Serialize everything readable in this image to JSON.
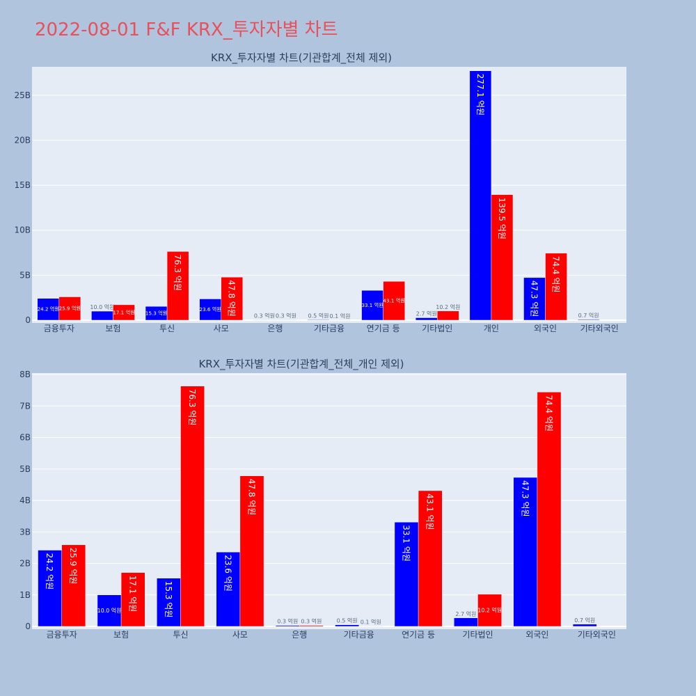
{
  "title": "2022-08-01 F&F KRX_투자자별 차트",
  "colors": {
    "buy": "#0000ff",
    "sell": "#ff0000",
    "plot_bg": "#e5ecf6",
    "page_bg": "#b0c4de",
    "title": "#e8505b"
  },
  "chart_data": [
    {
      "type": "bar",
      "title": "KRX_투자자별 차트(기관합계_전체 제외)",
      "categories": [
        "금융투자",
        "보험",
        "투신",
        "사모",
        "은행",
        "기타금융",
        "연기금 등",
        "기타법인",
        "개인",
        "외국인",
        "기타외국인"
      ],
      "ylim": [
        0,
        28
      ],
      "yticks": [
        0,
        5,
        10,
        15,
        20,
        25
      ],
      "ytick_labels": [
        "0",
        "5B",
        "10B",
        "15B",
        "20B",
        "25B"
      ],
      "grid": true,
      "series": [
        {
          "values": [
            2.42,
            1.0,
            1.53,
            2.36,
            0.03,
            0.05,
            3.31,
            0.27,
            27.71,
            4.73,
            0.07
          ],
          "labels": [
            "24.2 억원",
            "10.0 억원",
            "15.3 억원",
            "23.6 억원",
            "0.3 억원",
            "0.5 억원",
            "33.1 억원",
            "2.7 억원",
            "277.1 억원",
            "47.3 억원",
            "0.7 억원"
          ]
        },
        {
          "values": [
            2.59,
            1.71,
            7.63,
            4.78,
            0.03,
            0.01,
            4.31,
            1.02,
            13.95,
            7.44,
            0
          ],
          "labels": [
            "25.9 억원",
            "17.1 억원",
            "76.3 억원",
            "47.8 억원",
            "0.3 억원",
            "0.1 억원",
            "43.1 억원",
            "10.2 억원",
            "139.5 억원",
            "74.4 억원",
            ""
          ]
        }
      ]
    },
    {
      "type": "bar",
      "title": "KRX_투자자별 차트(기관합계_전체_개인 제외)",
      "categories": [
        "금융투자",
        "보험",
        "투신",
        "사모",
        "은행",
        "기타금융",
        "연기금 등",
        "기타법인",
        "외국인",
        "기타외국인"
      ],
      "ylim": [
        0,
        8
      ],
      "yticks": [
        0,
        1,
        2,
        3,
        4,
        5,
        6,
        7,
        8
      ],
      "ytick_labels": [
        "0",
        "1B",
        "2B",
        "3B",
        "4B",
        "5B",
        "6B",
        "7B",
        "8B"
      ],
      "grid": true,
      "series": [
        {
          "values": [
            2.42,
            1.0,
            1.53,
            2.36,
            0.03,
            0.05,
            3.31,
            0.27,
            4.73,
            0.07
          ],
          "labels": [
            "24.2 억원",
            "10.0 억원",
            "15.3 억원",
            "23.6 억원",
            "0.3 억원",
            "0.5 억원",
            "33.1 억원",
            "2.7 억원",
            "47.3 억원",
            "0.7 억원"
          ]
        },
        {
          "values": [
            2.59,
            1.71,
            7.63,
            4.78,
            0.03,
            0.01,
            4.31,
            1.02,
            7.44,
            0
          ],
          "labels": [
            "25.9 억원",
            "17.1 억원",
            "76.3 억원",
            "47.8 억원",
            "0.3 억원",
            "0.1 억원",
            "43.1 억원",
            "10.2 억원",
            "74.4 억원",
            ""
          ]
        }
      ]
    }
  ]
}
